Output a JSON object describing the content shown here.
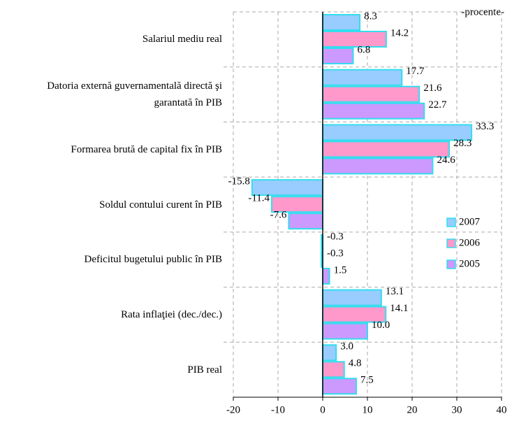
{
  "chart_data": {
    "type": "bar",
    "orientation": "horizontal",
    "annotation": "-procente-",
    "categories": [
      "Salariul mediu real",
      "Datoria externă guvernamentală directă şi\ngarantată în PIB",
      "Formarea brută de capital fix în PIB",
      "Soldul contului curent în PIB",
      "Deficitul bugetului public în PIB",
      "Rata inflaţiei (dec./dec.)",
      "PIB real"
    ],
    "series": [
      {
        "name": "2007",
        "color": "#99ccff",
        "values": [
          8.3,
          17.7,
          33.3,
          -15.8,
          -0.3,
          13.1,
          3.0
        ],
        "value_labels": [
          "8.3",
          "17.7",
          "33.3",
          "-15.8",
          "-0.3",
          "13.1",
          "3.0"
        ]
      },
      {
        "name": "2006",
        "color": "#ff99cc",
        "values": [
          14.2,
          21.6,
          28.3,
          -11.4,
          -0.3,
          14.1,
          4.8
        ],
        "value_labels": [
          "14.2",
          "21.6",
          "28.3",
          "-11.4",
          "-0.3",
          "14.1",
          "4.8"
        ]
      },
      {
        "name": "2005",
        "color": "#cc99ff",
        "values": [
          6.8,
          22.7,
          24.6,
          -7.6,
          1.5,
          10.0,
          7.5
        ],
        "value_labels": [
          "6.8",
          "22.7",
          "24.6",
          "-7.6",
          "1.5",
          "10.0",
          "7.5"
        ]
      }
    ],
    "xlim": [
      -20,
      40
    ],
    "xticks": [
      -20,
      -10,
      0,
      10,
      20,
      30,
      40
    ],
    "grid": true,
    "legend": "right"
  }
}
